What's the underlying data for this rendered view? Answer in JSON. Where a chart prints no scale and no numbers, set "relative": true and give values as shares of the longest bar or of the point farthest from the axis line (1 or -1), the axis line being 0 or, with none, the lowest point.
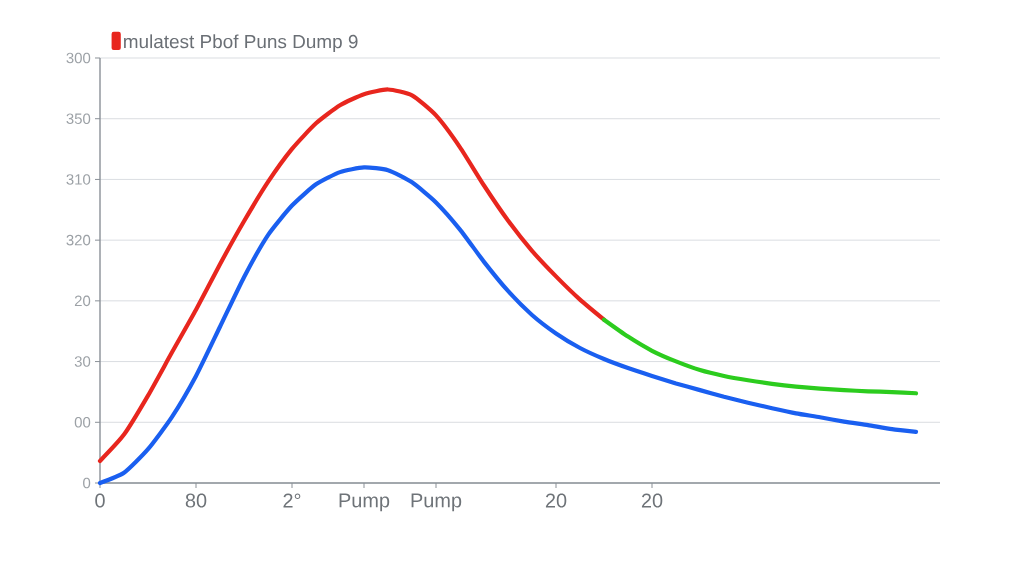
{
  "chart_data": {
    "type": "line",
    "relative": true,
    "categories": [
      "0",
      null,
      null,
      null,
      "80",
      null,
      null,
      null,
      "2°",
      null,
      null,
      "Pump",
      null,
      null,
      "Pump",
      null,
      null,
      null,
      null,
      "20",
      null,
      null,
      null,
      "20",
      null,
      null,
      null,
      null,
      null,
      null,
      null,
      null,
      null,
      null,
      null,
      null
    ],
    "annotations": [
      "300",
      "350",
      "310",
      "320",
      "20",
      "30",
      "00",
      "0"
    ],
    "grid": "y",
    "legend": "top left",
    "series": [
      {
        "name": "mulatest Pbof Puns Dump 9",
        "color": "#e8261e",
        "values": [
          0.056,
          0.123,
          0.222,
          0.332,
          0.44,
          0.556,
          0.665,
          0.765,
          0.849,
          0.914,
          0.96,
          0.988,
          1,
          0.985,
          0.934,
          0.853,
          0.756,
          0.667,
          0.59,
          0.525,
          0.466,
          0.415,
          null,
          null,
          null,
          null,
          null,
          null,
          null,
          null,
          null,
          null,
          null,
          null,
          null,
          null
        ]
      },
      {
        "color": "#2ccc1e",
        "values": [
          null,
          null,
          null,
          null,
          null,
          null,
          null,
          null,
          null,
          null,
          null,
          null,
          null,
          null,
          null,
          null,
          null,
          null,
          null,
          null,
          null,
          0.415,
          0.372,
          0.336,
          0.309,
          0.287,
          0.272,
          0.261,
          0.252,
          0.245,
          0.24,
          0.236,
          0.233,
          0.231,
          0.228,
          null
        ]
      },
      {
        "color": "#1a5ff0",
        "values": [
          0,
          0.026,
          0.086,
          0.168,
          0.272,
          0.397,
          0.523,
          0.63,
          0.705,
          0.759,
          0.79,
          0.802,
          0.795,
          0.764,
          0.713,
          0.644,
          0.562,
          0.488,
          0.427,
          0.38,
          0.343,
          0.315,
          0.292,
          0.272,
          0.253,
          0.236,
          0.219,
          0.204,
          0.19,
          0.177,
          0.167,
          0.156,
          0.147,
          0.137,
          0.13,
          null
        ]
      }
    ]
  }
}
